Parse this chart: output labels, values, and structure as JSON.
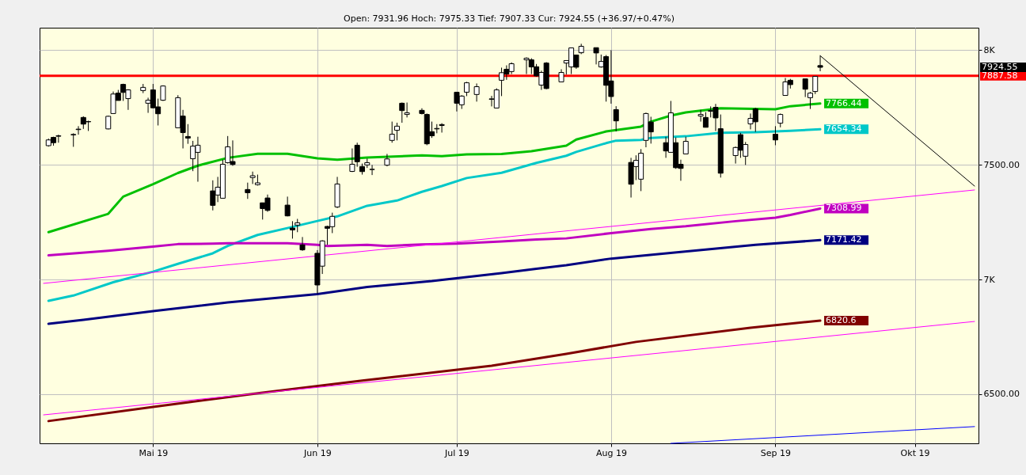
{
  "chart_data": {
    "type": "candlestick",
    "subtitle": "Open: 7931.96 Hoch: 7975.33 Tief: 7907.33 Cur: 7924.55 (+36.97/+0.47%)",
    "x": [
      "2019-04-10",
      "2019-04-11",
      "2019-04-12",
      "2019-04-15",
      "2019-04-16",
      "2019-04-17",
      "2019-04-18",
      "2019-04-22",
      "2019-04-23",
      "2019-04-24",
      "2019-04-25",
      "2019-04-26",
      "2019-04-29",
      "2019-04-30",
      "2019-05-01",
      "2019-05-02",
      "2019-05-03",
      "2019-05-06",
      "2019-05-07",
      "2019-05-08",
      "2019-05-09",
      "2019-05-10",
      "2019-05-13",
      "2019-05-14",
      "2019-05-15",
      "2019-05-16",
      "2019-05-17",
      "2019-05-20",
      "2019-05-21",
      "2019-05-22",
      "2019-05-23",
      "2019-05-24",
      "2019-05-28",
      "2019-05-29",
      "2019-05-30",
      "2019-05-31",
      "2019-06-03",
      "2019-06-04",
      "2019-06-05",
      "2019-06-06",
      "2019-06-07",
      "2019-06-10",
      "2019-06-11",
      "2019-06-12",
      "2019-06-13",
      "2019-06-14",
      "2019-06-17",
      "2019-06-18",
      "2019-06-19",
      "2019-06-20",
      "2019-06-21",
      "2019-06-24",
      "2019-06-25",
      "2019-06-26",
      "2019-06-27",
      "2019-06-28",
      "2019-07-01",
      "2019-07-02",
      "2019-07-03",
      "2019-07-05",
      "2019-07-08",
      "2019-07-09",
      "2019-07-10",
      "2019-07-11",
      "2019-07-12",
      "2019-07-15",
      "2019-07-16",
      "2019-07-17",
      "2019-07-18",
      "2019-07-19",
      "2019-07-22",
      "2019-07-23",
      "2019-07-24",
      "2019-07-25",
      "2019-07-26",
      "2019-07-29",
      "2019-07-30",
      "2019-07-31",
      "2019-08-01",
      "2019-08-02",
      "2019-08-05",
      "2019-08-06",
      "2019-08-07",
      "2019-08-08",
      "2019-08-09",
      "2019-08-12",
      "2019-08-13",
      "2019-08-14",
      "2019-08-15",
      "2019-08-16",
      "2019-08-19",
      "2019-08-20",
      "2019-08-21",
      "2019-08-22",
      "2019-08-23",
      "2019-08-26",
      "2019-08-27",
      "2019-08-28",
      "2019-08-29",
      "2019-08-30",
      "2019-09-03",
      "2019-09-04",
      "2019-09-05",
      "2019-09-06",
      "2019-09-09",
      "2019-09-10",
      "2019-09-11",
      "2019-09-12"
    ],
    "ohlc": [
      [
        7583,
        7614,
        7579,
        7608
      ],
      [
        7619,
        7622,
        7583,
        7596
      ],
      [
        7624,
        7631,
        7596,
        7626
      ],
      [
        7630,
        7637,
        7578,
        7632
      ],
      [
        7653,
        7668,
        7631,
        7655
      ],
      [
        7706,
        7711,
        7656,
        7677
      ],
      [
        7688,
        7692,
        7647,
        7687
      ],
      [
        7656,
        7714,
        7654,
        7711
      ],
      [
        7723,
        7819,
        7721,
        7808
      ],
      [
        7812,
        7826,
        7780,
        7780
      ],
      [
        7850,
        7853,
        7778,
        7815
      ],
      [
        7788,
        7829,
        7739,
        7826
      ],
      [
        7823,
        7852,
        7812,
        7837
      ],
      [
        7768,
        7792,
        7726,
        7781
      ],
      [
        7826,
        7852,
        7746,
        7748
      ],
      [
        7752,
        7788,
        7671,
        7722
      ],
      [
        7781,
        7846,
        7778,
        7843
      ],
      [
        7661,
        7803,
        7661,
        7792
      ],
      [
        7712,
        7739,
        7571,
        7640
      ],
      [
        7623,
        7677,
        7591,
        7616
      ],
      [
        7526,
        7604,
        7472,
        7581
      ],
      [
        7554,
        7622,
        7426,
        7585
      ],
      [
        7386,
        7432,
        7301,
        7323
      ],
      [
        7368,
        7447,
        7337,
        7402
      ],
      [
        7354,
        7522,
        7354,
        7502
      ],
      [
        7509,
        7625,
        7505,
        7578
      ],
      [
        7514,
        7606,
        7495,
        7501
      ],
      [
        7392,
        7422,
        7351,
        7378
      ],
      [
        7444,
        7470,
        7416,
        7452
      ],
      [
        7413,
        7457,
        7409,
        7421
      ],
      [
        7334,
        7334,
        7261,
        7309
      ],
      [
        7355,
        7370,
        7295,
        7301
      ],
      [
        7324,
        7361,
        7275,
        7277
      ],
      [
        7224,
        7254,
        7178,
        7216
      ],
      [
        7237,
        7264,
        7206,
        7247
      ],
      [
        7151,
        7185,
        7125,
        7129
      ],
      [
        7114,
        7128,
        6938,
        6976
      ],
      [
        7058,
        7171,
        7024,
        7168
      ],
      [
        7231,
        7234,
        7151,
        7223
      ],
      [
        7230,
        7291,
        7202,
        7275
      ],
      [
        7316,
        7447,
        7311,
        7416
      ],
      [
        7471,
        7571,
        7468,
        7502
      ],
      [
        7585,
        7596,
        7491,
        7513
      ],
      [
        7492,
        7505,
        7457,
        7470
      ],
      [
        7499,
        7527,
        7486,
        7509
      ],
      [
        7479,
        7499,
        7455,
        7480
      ],
      [
        7498,
        7547,
        7493,
        7525
      ],
      [
        7606,
        7688,
        7596,
        7633
      ],
      [
        7650,
        7683,
        7606,
        7668
      ],
      [
        7768,
        7771,
        7683,
        7736
      ],
      [
        7719,
        7771,
        7706,
        7726
      ],
      [
        7737,
        7746,
        7719,
        7723
      ],
      [
        7719,
        7723,
        7585,
        7591
      ],
      [
        7644,
        7688,
        7617,
        7626
      ],
      [
        7656,
        7677,
        7637,
        7658
      ],
      [
        7675,
        7681,
        7640,
        7671
      ],
      [
        7816,
        7817,
        7732,
        7768
      ],
      [
        7761,
        7803,
        7743,
        7799
      ],
      [
        7816,
        7861,
        7799,
        7857
      ],
      [
        7806,
        7854,
        7775,
        7840
      ],
      [
        7785,
        7800,
        7754,
        7787
      ],
      [
        7747,
        7833,
        7747,
        7826
      ],
      [
        7868,
        7923,
        7799,
        7901
      ],
      [
        7916,
        7933,
        7870,
        7895
      ],
      [
        7906,
        7946,
        7895,
        7940
      ],
      [
        7957,
        7968,
        7895,
        7964
      ],
      [
        7957,
        7964,
        7895,
        7926
      ],
      [
        7927,
        7939,
        7884,
        7887
      ],
      [
        7847,
        7910,
        7826,
        7902
      ],
      [
        7943,
        7947,
        7829,
        7832
      ],
      [
        7861,
        7916,
        7861,
        7902
      ],
      [
        7943,
        7955,
        7893,
        7954
      ],
      [
        7926,
        8010,
        7895,
        8009
      ],
      [
        7978,
        7980,
        7918,
        7925
      ],
      [
        7988,
        8027,
        7982,
        8016
      ],
      [
        8010,
        8010,
        7937,
        7987
      ],
      [
        7926,
        7980,
        7923,
        7950
      ],
      [
        7971,
        7978,
        7775,
        7846
      ],
      [
        7865,
        7999,
        7766,
        7797
      ],
      [
        7740,
        7755,
        7645,
        7691
      ],
      [
        7510,
        7530,
        7357,
        7415
      ],
      [
        7492,
        7541,
        7433,
        7519
      ],
      [
        7437,
        7568,
        7385,
        7550
      ],
      [
        7606,
        7727,
        7576,
        7723
      ],
      [
        7686,
        7709,
        7592,
        7643
      ],
      [
        7596,
        7622,
        7530,
        7560
      ],
      [
        7554,
        7778,
        7554,
        7726
      ],
      [
        7596,
        7619,
        7482,
        7487
      ],
      [
        7502,
        7522,
        7430,
        7484
      ],
      [
        7547,
        7622,
        7547,
        7602
      ],
      [
        7712,
        7739,
        7688,
        7719
      ],
      [
        7706,
        7729,
        7663,
        7663
      ],
      [
        7733,
        7754,
        7706,
        7736
      ],
      [
        7750,
        7765,
        7647,
        7704
      ],
      [
        7657,
        7719,
        7444,
        7463
      ],
      [
        7540,
        7579,
        7505,
        7575
      ],
      [
        7631,
        7639,
        7530,
        7563
      ],
      [
        7537,
        7599,
        7499,
        7588
      ],
      [
        7678,
        7723,
        7654,
        7702
      ],
      [
        7743,
        7748,
        7643,
        7687
      ],
      [
        7633,
        7668,
        7585,
        7608
      ],
      [
        7681,
        7723,
        7663,
        7719
      ],
      [
        7802,
        7878,
        7802,
        7861
      ],
      [
        7868,
        7874,
        7832,
        7849
      ],
      [
        7874,
        7874,
        7795,
        7829
      ],
      [
        7792,
        7817,
        7743,
        7812
      ],
      [
        7819,
        7885,
        7808,
        7885
      ],
      [
        7931.96,
        7975.33,
        7907.33,
        7924.55
      ]
    ],
    "value_labels": [
      null,
      null,
      null,
      null,
      null,
      null,
      null,
      null,
      null,
      null,
      null,
      null,
      null,
      null,
      null,
      null,
      null,
      null,
      null,
      null,
      null,
      null,
      null,
      null,
      null,
      null,
      null,
      null,
      null,
      null,
      null,
      null,
      null,
      null,
      null,
      null,
      null,
      null,
      null,
      null,
      null,
      null,
      null,
      null,
      null,
      null,
      null,
      null,
      null,
      null,
      null,
      null,
      null,
      null,
      null,
      null,
      null,
      null,
      null,
      null,
      null,
      null,
      null,
      null,
      null,
      null,
      null,
      null,
      null,
      null,
      null,
      null,
      null,
      null,
      null,
      null,
      null,
      null,
      null,
      null,
      null,
      null,
      null,
      null,
      null,
      null,
      null,
      null,
      null,
      null,
      null,
      null,
      null,
      null,
      null,
      null,
      null,
      null,
      null,
      null,
      null,
      null,
      null,
      null,
      null,
      null,
      null,
      "7924.55"
    ],
    "series": [
      {
        "type": "line",
        "color": "#00c000",
        "x": [
          "2019-04-10",
          "2019-04-22",
          "2019-04-25",
          "2019-05-01",
          "2019-05-06",
          "2019-05-10",
          "2019-05-16",
          "2019-05-22",
          "2019-05-28",
          "2019-06-03",
          "2019-06-07",
          "2019-06-13",
          "2019-06-24",
          "2019-06-28",
          "2019-07-03",
          "2019-07-10",
          "2019-07-16",
          "2019-07-23",
          "2019-07-25",
          "2019-07-31",
          "2019-08-07",
          "2019-08-09",
          "2019-08-13",
          "2019-08-16",
          "2019-08-23",
          "2019-09-03",
          "2019-09-06",
          "2019-09-12"
        ],
        "values": [
          7206,
          7286,
          7361,
          7415,
          7464,
          7496,
          7530,
          7548,
          7548,
          7528,
          7522,
          7531,
          7541,
          7537,
          7545,
          7547,
          7559,
          7583,
          7610,
          7645,
          7666,
          7688,
          7714,
          7728,
          7746,
          7742,
          7755,
          7766.44
        ],
        "value_labels": [
          null,
          null,
          null,
          null,
          null,
          null,
          null,
          null,
          null,
          null,
          null,
          null,
          null,
          null,
          null,
          null,
          null,
          null,
          null,
          null,
          null,
          null,
          null,
          null,
          null,
          null,
          null,
          "7766.44"
        ]
      },
      {
        "type": "line",
        "color": "#00c8c8",
        "x": [
          "2019-04-10",
          "2019-04-15",
          "2019-04-23",
          "2019-05-01",
          "2019-05-06",
          "2019-05-13",
          "2019-05-16",
          "2019-05-22",
          "2019-05-29",
          "2019-06-03",
          "2019-06-07",
          "2019-06-13",
          "2019-06-19",
          "2019-06-24",
          "2019-06-28",
          "2019-07-03",
          "2019-07-10",
          "2019-07-17",
          "2019-07-23",
          "2019-07-25",
          "2019-07-31",
          "2019-08-02",
          "2019-08-07",
          "2019-08-09",
          "2019-08-16",
          "2019-08-23",
          "2019-08-30",
          "2019-09-06",
          "2019-09-12"
        ],
        "values": [
          6907,
          6930,
          6988,
          7034,
          7068,
          7114,
          7146,
          7194,
          7229,
          7255,
          7275,
          7321,
          7344,
          7382,
          7407,
          7442,
          7465,
          7508,
          7539,
          7556,
          7594,
          7605,
          7608,
          7617,
          7624,
          7639,
          7642,
          7648,
          7654.34
        ],
        "value_labels": [
          null,
          null,
          null,
          null,
          null,
          null,
          null,
          null,
          null,
          null,
          null,
          null,
          null,
          null,
          null,
          null,
          null,
          null,
          null,
          null,
          null,
          null,
          null,
          null,
          null,
          null,
          null,
          null,
          "7654.34"
        ]
      },
      {
        "type": "line",
        "color": "#c000c0",
        "x": [
          "2019-04-10",
          "2019-04-22",
          "2019-05-01",
          "2019-05-06",
          "2019-05-13",
          "2019-05-16",
          "2019-05-28",
          "2019-06-03",
          "2019-06-05",
          "2019-06-13",
          "2019-06-17",
          "2019-06-24",
          "2019-07-01",
          "2019-07-10",
          "2019-07-17",
          "2019-07-23",
          "2019-08-01",
          "2019-08-09",
          "2019-08-16",
          "2019-08-26",
          "2019-09-03",
          "2019-09-06",
          "2019-09-12"
        ],
        "values": [
          7105,
          7125,
          7143,
          7154,
          7156,
          7158,
          7158,
          7151,
          7146,
          7151,
          7146,
          7153,
          7156,
          7166,
          7174,
          7179,
          7202,
          7220,
          7232,
          7254,
          7269,
          7281,
          7308.99
        ],
        "value_labels": [
          null,
          null,
          null,
          null,
          null,
          null,
          null,
          null,
          null,
          null,
          null,
          null,
          null,
          null,
          null,
          null,
          null,
          null,
          null,
          null,
          null,
          null,
          "7308.99"
        ]
      },
      {
        "type": "line",
        "color": "#000080",
        "x": [
          "2019-04-10",
          "2019-04-17",
          "2019-05-01",
          "2019-05-16",
          "2019-06-03",
          "2019-06-13",
          "2019-06-26",
          "2019-07-10",
          "2019-07-17",
          "2019-07-23",
          "2019-08-01",
          "2019-08-15",
          "2019-08-30",
          "2019-09-12"
        ],
        "values": [
          6807,
          6824,
          6862,
          6900,
          6936,
          6967,
          6993,
          7028,
          7047,
          7062,
          7091,
          7120,
          7151,
          7171.42
        ],
        "value_labels": [
          null,
          null,
          null,
          null,
          null,
          null,
          null,
          null,
          null,
          null,
          null,
          null,
          null,
          "7171.42"
        ]
      },
      {
        "type": "line",
        "color": "#800000",
        "x": [
          "2019-04-10",
          "2019-05-01",
          "2019-05-23",
          "2019-06-12",
          "2019-07-08",
          "2019-07-23",
          "2019-08-06",
          "2019-08-29",
          "2019-09-12"
        ],
        "values": [
          6383,
          6445,
          6507,
          6559,
          6624,
          6676,
          6728,
          6790,
          6820.6
        ],
        "value_labels": [
          null,
          null,
          null,
          null,
          null,
          null,
          null,
          null,
          "6820.6"
        ]
      },
      {
        "type": "line",
        "color": "#ff00ff",
        "x": [
          "2019-04-09",
          "2019-10-13"
        ],
        "values": [
          6983,
          7390
        ]
      },
      {
        "type": "line",
        "color": "#ff00ff",
        "x": [
          "2019-04-09",
          "2019-10-13"
        ],
        "values": [
          6410,
          6817
        ]
      },
      {
        "type": "line",
        "color": "#0000ff",
        "x": [
          "2019-08-13",
          "2019-10-13"
        ],
        "values": [
          6286,
          6359
        ]
      },
      {
        "type": "line",
        "color": "#000000",
        "x": [
          "2019-09-12",
          "2019-10-13"
        ],
        "values": [
          7975,
          7407
        ]
      }
    ],
    "ref_lines": [
      {
        "axis": "y",
        "value": 7887.58,
        "label": "7887.58",
        "color": "#ff0000"
      }
    ],
    "xlim": [
      "2019-04-09",
      "2019-10-13"
    ],
    "xticks": [
      {
        "value": "2019-05-01",
        "label": "Mai 19"
      },
      {
        "value": "2019-06-03",
        "label": "Jun 19"
      },
      {
        "value": "2019-07-01",
        "label": "Jul 19"
      },
      {
        "value": "2019-08-01",
        "label": "Aug 19"
      },
      {
        "value": "2019-09-03",
        "label": "Sep 19"
      },
      {
        "value": "2019-10-01",
        "label": "Okt 19"
      }
    ],
    "ylim": [
      6286,
      8097
    ],
    "yticks": [
      {
        "value": 6500,
        "label": "6500.00"
      },
      {
        "value": 7000,
        "label": "7K"
      },
      {
        "value": 7500,
        "label": "7500.00"
      },
      {
        "value": 8000,
        "label": "8K"
      }
    ],
    "grid": true
  }
}
